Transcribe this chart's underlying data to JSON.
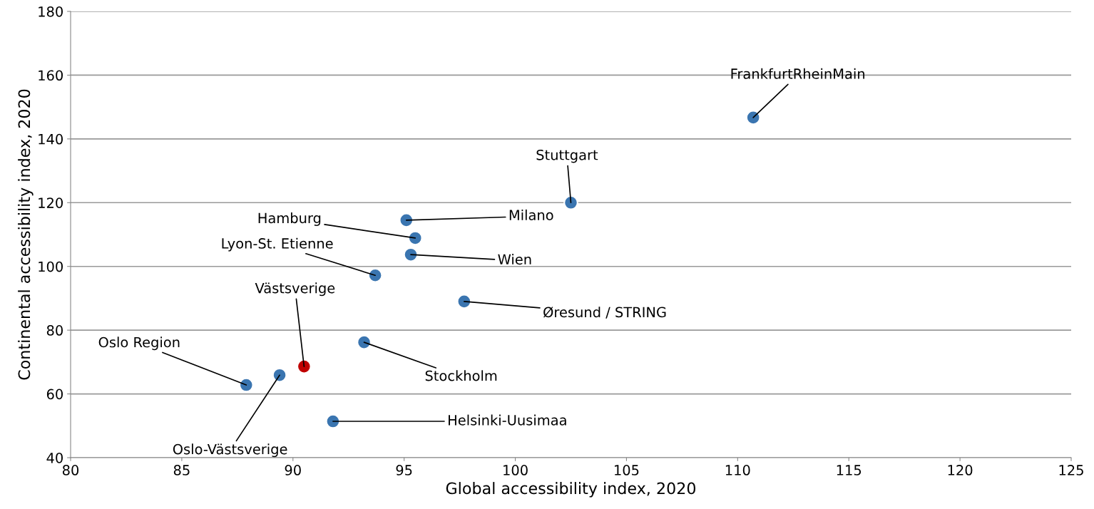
{
  "chart_data": {
    "type": "scatter",
    "xlabel": "Global accessibility index, 2020",
    "ylabel": "Continental accessibility index, 2020",
    "xlim": [
      80,
      125
    ],
    "xticks": [
      80,
      85,
      90,
      95,
      100,
      105,
      110,
      115,
      120,
      125
    ],
    "ylim": [
      40,
      180
    ],
    "yticks": [
      40,
      60,
      80,
      100,
      120,
      140,
      160,
      180
    ],
    "grid": "y",
    "legend": false,
    "marker": "circle",
    "series": [
      {
        "x": [
          110.7,
          102.5,
          95.1,
          95.5,
          95.3,
          93.7,
          97.7,
          93.2,
          90.5,
          89.4,
          87.9,
          91.8
        ],
        "values": [
          146.7,
          120,
          114.5,
          108.9,
          103.7,
          97.2,
          89.0,
          76.2,
          68.6,
          65.9,
          62.8,
          51.4
        ],
        "colors": [
          "#3a75b0",
          "#3a75b0",
          "#3a75b0",
          "#3a75b0",
          "#3a75b0",
          "#3a75b0",
          "#3a75b0",
          "#3a75b0",
          "#c00000",
          "#3a75b0",
          "#3a75b0",
          "#3a75b0"
        ]
      }
    ],
    "annotations": [
      {
        "text": "FrankfurtRheinMain",
        "x": 110.7,
        "y": 146.7
      },
      {
        "text": "Stuttgart",
        "x": 102.5,
        "y": 120
      },
      {
        "text": "Milano",
        "x": 95.1,
        "y": 114.5
      },
      {
        "text": "Hamburg",
        "x": 95.5,
        "y": 108.9
      },
      {
        "text": "Wien",
        "x": 95.3,
        "y": 103.7
      },
      {
        "text": "Lyon-St. Etienne",
        "x": 93.7,
        "y": 97.2
      },
      {
        "text": "Øresund / STRING",
        "x": 97.7,
        "y": 89.0
      },
      {
        "text": "Stockholm",
        "x": 93.2,
        "y": 76.2
      },
      {
        "text": "Västsverige",
        "x": 90.5,
        "y": 68.6
      },
      {
        "text": "Oslo-Västsverige",
        "x": 89.4,
        "y": 65.9
      },
      {
        "text": "Oslo Region",
        "x": 87.9,
        "y": 62.8
      },
      {
        "text": "Helsinki-Uusimaa",
        "x": 91.8,
        "y": 51.4
      }
    ]
  }
}
